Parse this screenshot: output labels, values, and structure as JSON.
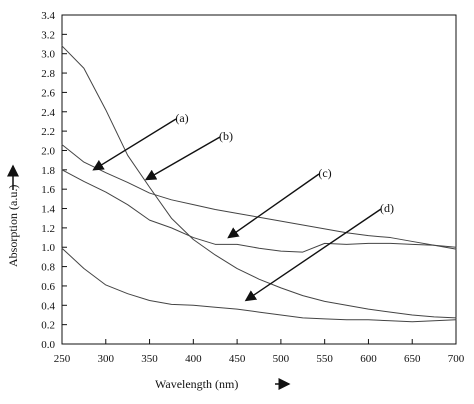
{
  "chart_data": {
    "type": "line",
    "title": "",
    "xlabel": "Wavelength (nm)",
    "ylabel": "Absorption (a.u.)",
    "xlim": [
      250,
      700
    ],
    "ylim": [
      0.0,
      3.4
    ],
    "x_ticks": [
      250,
      300,
      350,
      400,
      450,
      500,
      550,
      600,
      650,
      700
    ],
    "y_ticks": [
      0.0,
      0.2,
      0.4,
      0.6,
      0.8,
      1.0,
      1.2,
      1.4,
      1.6,
      1.8,
      2.0,
      2.2,
      2.4,
      2.6,
      2.8,
      3.0,
      3.2,
      3.4
    ],
    "grid": false,
    "line_color": "#444444",
    "series": [
      {
        "name": "(a)",
        "x": [
          250,
          275,
          300,
          325,
          350,
          375,
          400,
          425,
          450,
          475,
          500,
          525,
          550,
          575,
          600,
          625,
          650,
          675,
          700
        ],
        "values": [
          2.06,
          1.88,
          1.77,
          1.67,
          1.56,
          1.49,
          1.44,
          1.39,
          1.35,
          1.31,
          1.27,
          1.23,
          1.19,
          1.15,
          1.12,
          1.1,
          1.06,
          1.02,
          1.0
        ]
      },
      {
        "name": "(b)",
        "x": [
          250,
          275,
          300,
          325,
          350,
          375,
          400,
          425,
          450,
          475,
          500,
          525,
          550,
          575,
          600,
          625,
          650,
          675,
          700
        ],
        "values": [
          3.08,
          2.85,
          2.42,
          1.95,
          1.62,
          1.3,
          1.08,
          0.92,
          0.78,
          0.67,
          0.58,
          0.5,
          0.44,
          0.4,
          0.36,
          0.33,
          0.3,
          0.28,
          0.27
        ]
      },
      {
        "name": "(c)",
        "x": [
          250,
          275,
          300,
          325,
          350,
          375,
          400,
          425,
          450,
          475,
          500,
          525,
          550,
          575,
          600,
          625,
          650,
          675,
          700
        ],
        "values": [
          1.8,
          1.68,
          1.57,
          1.44,
          1.28,
          1.2,
          1.1,
          1.03,
          1.03,
          0.99,
          0.96,
          0.95,
          1.04,
          1.03,
          1.04,
          1.04,
          1.03,
          1.02,
          0.98
        ]
      },
      {
        "name": "(d)",
        "x": [
          250,
          275,
          300,
          325,
          350,
          375,
          400,
          425,
          450,
          475,
          500,
          525,
          550,
          575,
          600,
          625,
          650,
          675,
          700
        ],
        "values": [
          0.99,
          0.78,
          0.61,
          0.52,
          0.45,
          0.41,
          0.4,
          0.38,
          0.36,
          0.33,
          0.3,
          0.27,
          0.26,
          0.25,
          0.25,
          0.24,
          0.23,
          0.24,
          0.25
        ]
      }
    ],
    "annotations": [
      {
        "label": "(a)",
        "target": "(a)",
        "arrow_to_x": 286,
        "arrow_to_y": 1.8
      },
      {
        "label": "(b)",
        "target": "(b)",
        "arrow_to_x": 346,
        "arrow_to_y": 1.7
      },
      {
        "label": "(c)",
        "target": "(c)",
        "arrow_to_x": 440,
        "arrow_to_y": 1.1
      },
      {
        "label": "(d)",
        "target": "(d)",
        "arrow_to_x": 460,
        "arrow_to_y": 0.45
      }
    ]
  }
}
